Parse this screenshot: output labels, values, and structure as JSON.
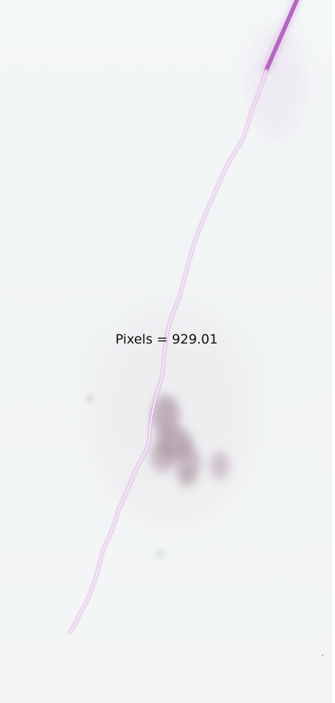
{
  "measurement": {
    "label": "Pixels = 929.01"
  },
  "colors": {
    "background": "#f3f6f6",
    "stained_fiber": "#b466c0",
    "trace_line": "#fbe9ff",
    "tissue_blob": "#9c7f8e",
    "label_text": "#111111"
  }
}
